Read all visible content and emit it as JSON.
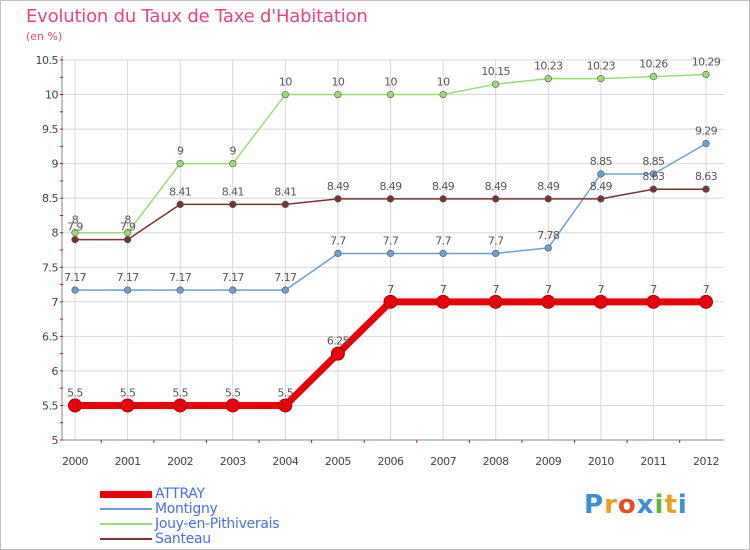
{
  "title": "Evolution du Taux de Taxe d'Habitation",
  "unit": "(en %)",
  "logo": "Proxiti",
  "colors": {
    "grid": "#d8d8d8",
    "axis": "#888888",
    "tick_text": "#444444",
    "title": "#e9447f"
  },
  "chart_data": {
    "type": "line",
    "title": "Evolution du Taux de Taxe d'Habitation",
    "ylabel": "(en %)",
    "xlabel": "",
    "x": [
      "2000",
      "2001",
      "2002",
      "2003",
      "2004",
      "2005",
      "2006",
      "2007",
      "2008",
      "2009",
      "2010",
      "2011",
      "2012"
    ],
    "ylim": [
      5,
      10.5
    ],
    "yticks": [
      "5",
      "5.5",
      "6",
      "6.5",
      "7",
      "7.5",
      "8",
      "8.5",
      "9",
      "9.5",
      "10",
      "10.5"
    ],
    "grid": true,
    "legend_position": "bottom-left",
    "series": [
      {
        "name": "ATTRAY",
        "color": "#e8000b",
        "values": [
          5.5,
          5.5,
          5.5,
          5.5,
          5.5,
          6.25,
          7,
          7,
          7,
          7,
          7,
          7,
          7
        ],
        "labels": [
          "5.5",
          "5.5",
          "5.5",
          "5.5",
          "5.5",
          "6.25",
          "7",
          "7",
          "7",
          "7",
          "7",
          "7",
          "7"
        ]
      },
      {
        "name": "Montigny",
        "color": "#6f9fcf",
        "values": [
          7.17,
          7.17,
          7.17,
          7.17,
          7.17,
          7.7,
          7.7,
          7.7,
          7.7,
          7.78,
          8.85,
          8.85,
          9.29
        ],
        "labels": [
          "7.17",
          "7.17",
          "7.17",
          "7.17",
          "7.17",
          "7.7",
          "7.7",
          "7.7",
          "7.7",
          "7.78",
          "8.85",
          "8.85",
          "9.29"
        ]
      },
      {
        "name": "Jouy-en-Pithiverais",
        "color": "#99dd77",
        "values": [
          8,
          8,
          9,
          9,
          10,
          10,
          10,
          10,
          10.15,
          10.23,
          10.23,
          10.26,
          10.29
        ],
        "labels": [
          "8",
          "8",
          "9",
          "9",
          "10",
          "10",
          "10",
          "10",
          "10.15",
          "10.23",
          "10.23",
          "10.26",
          "10.29"
        ]
      },
      {
        "name": "Santeau",
        "color": "#773333",
        "values": [
          7.9,
          7.9,
          8.41,
          8.41,
          8.41,
          8.49,
          8.49,
          8.49,
          8.49,
          8.49,
          8.49,
          8.63,
          8.63
        ],
        "labels": [
          "7.9",
          "7.9",
          "8.41",
          "8.41",
          "8.41",
          "8.49",
          "8.49",
          "8.49",
          "8.49",
          "8.49",
          "8.49",
          "8.63",
          "8.63"
        ]
      }
    ]
  }
}
